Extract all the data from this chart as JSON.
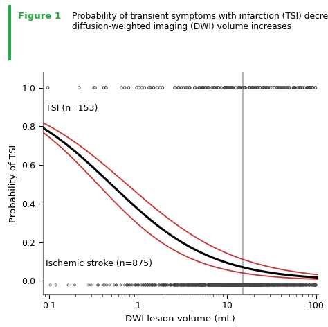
{
  "title_label": "Figure 1",
  "title_text": "Probability of transient symptoms with infarction (TSI) decreases as\ndiffusion-weighted imaging (DWI) volume increases",
  "xlabel": "DWI lesion volume (mL)",
  "ylabel": "Probability of TSI",
  "xticks": [
    0.1,
    1,
    10,
    100
  ],
  "yticks": [
    0.0,
    0.2,
    0.4,
    0.6,
    0.8,
    1.0
  ],
  "vline_x": 15,
  "vline_color": "#aaaaaa",
  "main_curve_color": "#000000",
  "ci_curve_color": "#cc3333",
  "background_color": "#ffffff",
  "tsi_label": "TSI (n=153)",
  "stroke_label": "Ischemic stroke (n=875)",
  "figure_label_color": "#22aa44",
  "logistic_intercept": -0.53,
  "logistic_slope": -1.75,
  "ci_upper_intercept": -0.2,
  "ci_upper_slope": -1.6,
  "ci_lower_intercept": -0.88,
  "ci_lower_slope": -1.95
}
